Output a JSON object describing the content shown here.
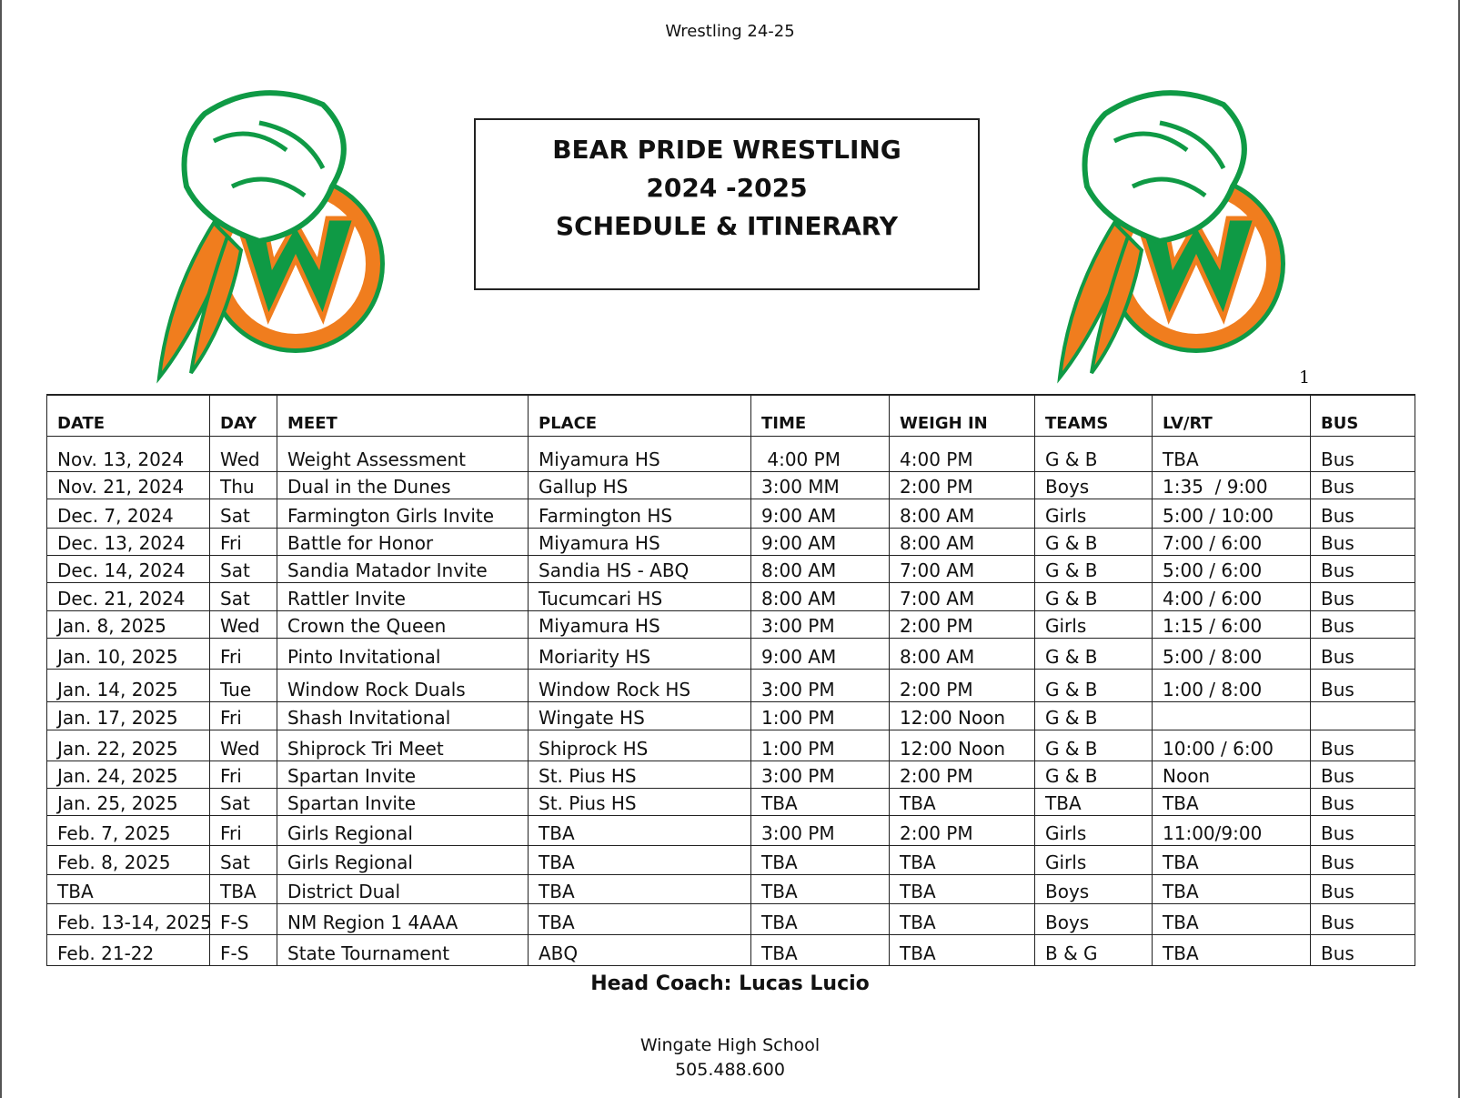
{
  "header": "Wrestling 24-25",
  "title": {
    "line1": "BEAR PRIDE WRESTLING",
    "line2": "2024 -2025",
    "line3": "SCHEDULE & ITINERARY"
  },
  "page_number": "1",
  "colors": {
    "green": "#0f9a45",
    "orange": "#f07d1e"
  },
  "table": {
    "columns": [
      "DATE",
      "DAY",
      "MEET",
      "PLACE",
      "TIME",
      "WEIGH IN",
      "TEAMS",
      "LV/RT",
      "BUS"
    ],
    "rows": [
      [
        "Nov. 13, 2024",
        "Wed",
        "Weight Assessment",
        "Miyamura HS",
        " 4:00 PM",
        "4:00 PM",
        "G & B",
        "TBA",
        "Bus"
      ],
      [
        "Nov. 21, 2024",
        "Thu",
        "Dual in the Dunes",
        "Gallup HS",
        "3:00 MM",
        "2:00 PM",
        "Boys",
        "1:35  / 9:00",
        "Bus"
      ],
      [
        "Dec. 7, 2024",
        "Sat",
        "Farmington Girls Invite",
        "Farmington HS",
        "9:00 AM",
        "8:00 AM",
        "Girls",
        "5:00 / 10:00",
        "Bus"
      ],
      [
        "Dec. 13, 2024",
        "Fri",
        "Battle for Honor",
        "Miyamura HS",
        "9:00 AM",
        "8:00 AM",
        "G & B",
        "7:00 / 6:00",
        "Bus"
      ],
      [
        "Dec. 14, 2024",
        "Sat",
        "Sandia Matador Invite",
        "Sandia HS - ABQ",
        "8:00 AM",
        "7:00 AM",
        "G & B",
        "5:00 / 6:00",
        "Bus"
      ],
      [
        "Dec. 21, 2024",
        "Sat",
        "Rattler Invite",
        "Tucumcari HS",
        "8:00 AM",
        "7:00 AM",
        "G & B",
        "4:00 / 6:00",
        "Bus"
      ],
      [
        "Jan. 8, 2025",
        "Wed",
        "Crown the Queen",
        "Miyamura HS",
        "3:00 PM",
        "2:00 PM",
        "Girls",
        "1:15 / 6:00",
        "Bus"
      ],
      [
        "Jan. 10, 2025",
        "Fri",
        "Pinto Invitational",
        "Moriarity HS",
        "9:00 AM",
        "8:00 AM",
        "G & B",
        "5:00 / 8:00",
        "Bus"
      ],
      [
        "Jan. 14, 2025",
        "Tue",
        "Window Rock Duals",
        "Window Rock HS",
        "3:00 PM",
        "2:00 PM",
        "G & B",
        "1:00 / 8:00",
        "Bus"
      ],
      [
        "Jan. 17, 2025",
        "Fri",
        "Shash Invitational",
        "Wingate HS",
        "1:00 PM",
        "12:00 Noon",
        "G & B",
        "",
        ""
      ],
      [
        "Jan. 22, 2025",
        "Wed",
        "Shiprock Tri Meet",
        "Shiprock HS",
        "1:00 PM",
        "12:00 Noon",
        "G & B",
        "10:00 / 6:00",
        "Bus"
      ],
      [
        "Jan. 24, 2025",
        "Fri",
        "Spartan Invite",
        "St. Pius HS",
        "3:00 PM",
        "2:00 PM",
        "G & B",
        "Noon",
        "Bus"
      ],
      [
        "Jan. 25, 2025",
        "Sat",
        "Spartan Invite",
        "St. Pius HS",
        "TBA",
        "TBA",
        "TBA",
        "TBA",
        "Bus"
      ],
      [
        "Feb. 7, 2025",
        "Fri",
        "Girls Regional",
        "TBA",
        "3:00 PM",
        "2:00 PM",
        "Girls",
        "11:00/9:00",
        "Bus"
      ],
      [
        "Feb. 8, 2025",
        "Sat",
        "Girls Regional",
        "TBA",
        "TBA",
        "TBA",
        "Girls",
        "TBA",
        "Bus"
      ],
      [
        "TBA",
        "TBA",
        "District Dual",
        "TBA",
        "TBA",
        "TBA",
        "Boys",
        "TBA",
        "Bus"
      ],
      [
        "Feb. 13-14, 2025",
        "F-S",
        "NM Region 1 4AAA",
        "TBA",
        "TBA",
        "TBA",
        "Boys",
        "TBA",
        "Bus"
      ],
      [
        "Feb. 21-22",
        "F-S",
        "State Tournament",
        "ABQ",
        "TBA",
        "TBA",
        "B & G",
        "TBA",
        "Bus"
      ]
    ]
  },
  "coach": "Head Coach:  Lucas Lucio",
  "footer": {
    "school": "Wingate High School",
    "phone": "505.488.600"
  }
}
